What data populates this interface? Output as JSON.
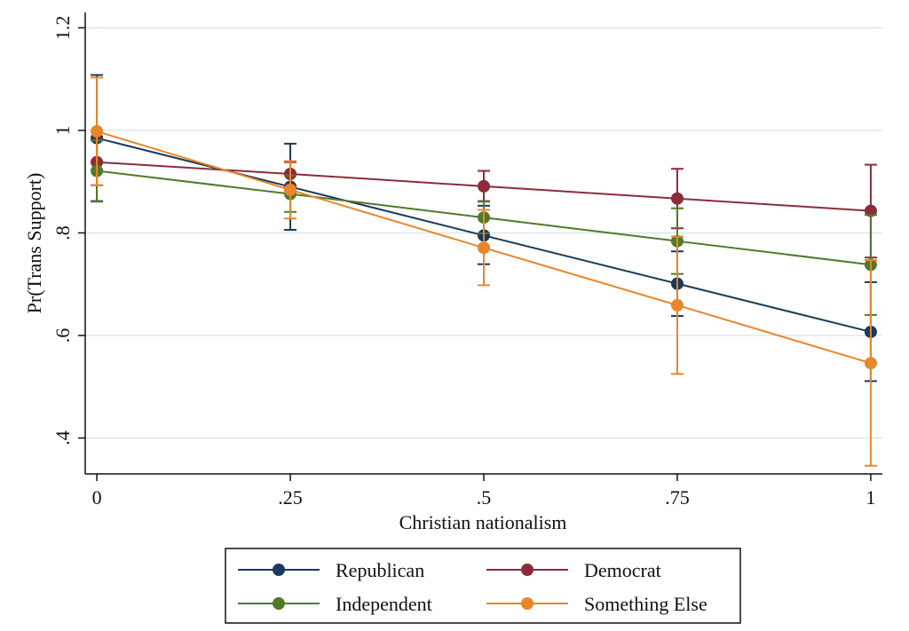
{
  "chart_data": {
    "type": "line",
    "title": "",
    "xlabel": "Christian nationalism",
    "ylabel": "Pr(Trans Support)",
    "x": [
      0,
      0.25,
      0.5,
      0.75,
      1
    ],
    "x_tick_labels": [
      "0",
      ".25",
      ".5",
      ".75",
      "1"
    ],
    "y_ticks": [
      0.4,
      0.6,
      0.8,
      1,
      1.2
    ],
    "y_tick_labels": [
      ".4",
      ".6",
      ".8",
      "1",
      "1.2"
    ],
    "xlim": [
      -0.015,
      1.015
    ],
    "ylim": [
      0.33,
      1.23
    ],
    "grid": true,
    "legend_position": "bottom",
    "series": [
      {
        "name": "Republican",
        "color": "#1a3a5c",
        "values": [
          0.985,
          0.89,
          0.795,
          0.701,
          0.607
        ],
        "ci_low": [
          0.862,
          0.806,
          0.739,
          0.638,
          0.511
        ],
        "ci_high": [
          1.108,
          0.974,
          0.853,
          0.764,
          0.704
        ]
      },
      {
        "name": "Democrat",
        "color": "#8b2c3b",
        "values": [
          0.938,
          0.915,
          0.891,
          0.867,
          0.843
        ],
        "ci_low": [
          0.893,
          0.893,
          0.862,
          0.809,
          0.752
        ],
        "ci_high": [
          0.983,
          0.938,
          0.921,
          0.925,
          0.933
        ]
      },
      {
        "name": "Independent",
        "color": "#4f7a2a",
        "values": [
          0.921,
          0.876,
          0.83,
          0.784,
          0.738
        ],
        "ci_low": [
          0.861,
          0.841,
          0.799,
          0.72,
          0.64
        ],
        "ci_high": [
          0.98,
          0.912,
          0.861,
          0.848,
          0.835
        ]
      },
      {
        "name": "Something Else",
        "color": "#e8862a",
        "values": [
          0.998,
          0.884,
          0.771,
          0.659,
          0.546
        ],
        "ci_low": [
          0.893,
          0.828,
          0.698,
          0.525,
          0.346
        ],
        "ci_high": [
          1.103,
          0.94,
          0.845,
          0.793,
          0.747
        ]
      }
    ]
  }
}
